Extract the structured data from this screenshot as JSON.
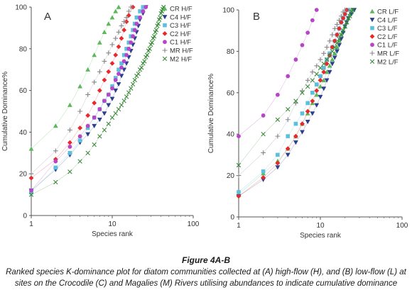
{
  "chart_data": [
    {
      "type": "scatter",
      "panel_label": "A",
      "xlabel": "Species rank",
      "ylabel": "Cumulative Dominance%",
      "xscale": "log",
      "xlim": [
        1,
        100
      ],
      "ylim": [
        0,
        100
      ],
      "xticks": [
        "1",
        "10",
        "100"
      ],
      "yticks": [
        "0",
        "20",
        "40",
        "60",
        "80",
        "100"
      ],
      "legend_position": "right",
      "series": [
        {
          "name": "CR H/F",
          "marker": "triangle",
          "color": "#5cb85c",
          "x": [
            1,
            2,
            3,
            4,
            5,
            6,
            7,
            8,
            9,
            10,
            11,
            12
          ],
          "y": [
            32,
            43,
            53,
            62,
            70,
            77,
            83,
            88,
            92,
            95,
            98,
            100
          ]
        },
        {
          "name": "C4 H/F",
          "marker": "triangle-down",
          "color": "#2a3f8f",
          "x": [
            1,
            2,
            3,
            4,
            5,
            6,
            7,
            8,
            9,
            10,
            11,
            12,
            13,
            14,
            15,
            16,
            17,
            18,
            19,
            20,
            21,
            22,
            24,
            26
          ],
          "y": [
            12,
            22,
            29,
            35,
            39,
            43,
            46,
            49,
            53,
            56,
            60,
            63,
            67,
            70,
            73,
            76,
            79,
            82,
            85,
            88,
            91,
            94,
            97,
            100
          ]
        },
        {
          "name": "C3 H/F",
          "marker": "square",
          "color": "#5bc0de",
          "x": [
            1,
            2,
            3,
            4,
            5,
            6,
            7,
            8,
            9,
            10,
            11,
            12,
            13,
            14,
            15,
            16,
            17,
            18,
            19,
            20,
            22,
            24
          ],
          "y": [
            11,
            23,
            30,
            36,
            42,
            47,
            51,
            55,
            58,
            62,
            66,
            70,
            73,
            77,
            80,
            83,
            86,
            89,
            92,
            95,
            98,
            100
          ]
        },
        {
          "name": "C2 H/F",
          "marker": "diamond",
          "color": "#e8282b",
          "x": [
            1,
            2,
            3,
            4,
            5,
            6,
            7,
            8,
            9,
            10,
            11,
            12,
            13,
            14,
            15,
            16,
            18
          ],
          "y": [
            18,
            27,
            35,
            42,
            48,
            54,
            60,
            65,
            69,
            73,
            77,
            81,
            85,
            89,
            93,
            96,
            100
          ]
        },
        {
          "name": "C1 H/F",
          "marker": "circle",
          "color": "#b845c8",
          "x": [
            1,
            2,
            3,
            4,
            5,
            6,
            7,
            8,
            9,
            10,
            11,
            12,
            13,
            14,
            15,
            16,
            17,
            18,
            19,
            20,
            22,
            24,
            26
          ],
          "y": [
            12,
            26,
            33,
            38,
            43,
            47,
            51,
            55,
            58,
            61,
            65,
            68,
            71,
            74,
            77,
            80,
            83,
            86,
            89,
            92,
            95,
            98,
            100
          ]
        },
        {
          "name": "MR H/F",
          "marker": "plus",
          "color": "#888888",
          "x": [
            1,
            2,
            3,
            4,
            5,
            6,
            7,
            8,
            9,
            10,
            11,
            12,
            13,
            14,
            15,
            16,
            17
          ],
          "y": [
            20,
            31,
            41,
            50,
            58,
            64,
            69,
            74,
            78,
            82,
            85,
            88,
            91,
            93,
            95,
            98,
            100
          ]
        },
        {
          "name": "M2 H/F",
          "marker": "cross",
          "color": "#3a8a3a",
          "x": [
            1,
            2,
            3,
            4,
            5,
            6,
            7,
            8,
            9,
            10,
            11,
            12,
            13,
            14,
            15,
            16,
            17,
            18,
            19,
            20,
            21,
            22,
            23,
            24,
            25,
            26,
            27,
            28,
            29,
            30,
            31,
            32,
            33,
            34,
            35,
            36,
            37,
            38,
            39,
            40,
            41,
            42,
            43
          ],
          "y": [
            10,
            16,
            21,
            26,
            30,
            34,
            38,
            41,
            44,
            47,
            49,
            51,
            53,
            55,
            57,
            59,
            61,
            63,
            65,
            67,
            68,
            70,
            71,
            73,
            74,
            76,
            77,
            79,
            80,
            82,
            83,
            85,
            86,
            88,
            89,
            91,
            92,
            94,
            95,
            97,
            98,
            99,
            100
          ]
        }
      ]
    },
    {
      "type": "scatter",
      "panel_label": "B",
      "xlabel": "Species rank",
      "ylabel": "Cumulative Dominance%",
      "xscale": "log",
      "xlim": [
        1,
        100
      ],
      "ylim": [
        0,
        100
      ],
      "xticks": [
        "1",
        "10",
        "100"
      ],
      "yticks": [
        "0",
        "20",
        "40",
        "60",
        "80",
        "100"
      ],
      "legend_position": "right",
      "series": [
        {
          "name": "CR L/F",
          "marker": "triangle",
          "color": "#5cb85c",
          "x": [
            1,
            2,
            3,
            4,
            5,
            6,
            7,
            8,
            9,
            10,
            11,
            12,
            13,
            14,
            15,
            16,
            17,
            18,
            19,
            20,
            21,
            22,
            23,
            24
          ],
          "y": [
            11,
            21,
            27,
            33,
            39,
            45,
            50,
            55,
            59,
            63,
            66,
            70,
            73,
            76,
            79,
            82,
            85,
            88,
            90,
            92,
            94,
            96,
            98,
            100
          ]
        },
        {
          "name": "C4 L/F",
          "marker": "triangle-down",
          "color": "#2a3f8f",
          "x": [
            1,
            2,
            3,
            4,
            5,
            6,
            7,
            8,
            9,
            10,
            11,
            12,
            13,
            14,
            15,
            16,
            17,
            18,
            19,
            20,
            21,
            22,
            24,
            26
          ],
          "y": [
            10,
            18,
            24,
            30,
            36,
            41,
            46,
            50,
            54,
            58,
            62,
            66,
            70,
            74,
            77,
            80,
            83,
            86,
            89,
            92,
            94,
            96,
            98,
            100
          ]
        },
        {
          "name": "C3 L/F",
          "marker": "square",
          "color": "#5bc0de",
          "x": [
            1,
            2,
            3,
            4,
            5,
            6,
            7,
            8,
            9,
            10,
            11,
            12,
            13,
            14,
            15,
            16,
            17,
            18,
            19,
            20,
            22
          ],
          "y": [
            12,
            22,
            30,
            39,
            45,
            50,
            55,
            60,
            64,
            68,
            72,
            76,
            79,
            82,
            85,
            88,
            91,
            94,
            96,
            98,
            100
          ]
        },
        {
          "name": "C2 L/F",
          "marker": "diamond",
          "color": "#e8282b",
          "x": [
            1,
            2,
            3,
            4,
            5,
            6,
            7,
            8,
            9,
            10,
            11,
            12,
            13,
            14,
            15,
            16,
            17,
            18,
            19,
            20,
            21
          ],
          "y": [
            10,
            19,
            26,
            33,
            39,
            45,
            51,
            56,
            61,
            66,
            70,
            74,
            78,
            82,
            85,
            88,
            91,
            94,
            96,
            98,
            100
          ]
        },
        {
          "name": "C1 L/F",
          "marker": "circle",
          "color": "#b845c8",
          "x": [
            1,
            2,
            3,
            4,
            5,
            6,
            7,
            8,
            9
          ],
          "y": [
            39,
            49,
            59,
            68,
            76,
            83,
            89,
            95,
            100
          ]
        },
        {
          "name": "MR L/F",
          "marker": "plus",
          "color": "#888888",
          "x": [
            1,
            2,
            3,
            4,
            5,
            6,
            7,
            8,
            9,
            10,
            11,
            12,
            13,
            14,
            15,
            16,
            17,
            18,
            19,
            20
          ],
          "y": [
            20,
            31,
            39,
            47,
            55,
            61,
            66,
            70,
            73,
            76,
            79,
            82,
            85,
            88,
            91,
            93,
            95,
            97,
            99,
            100
          ]
        },
        {
          "name": "M2 L/F",
          "marker": "cross",
          "color": "#3a8a3a",
          "x": [
            1,
            2,
            3,
            4,
            5,
            6,
            7,
            8,
            9,
            10,
            11,
            12,
            13,
            14,
            15,
            16,
            17,
            18,
            19,
            20,
            21,
            22,
            23,
            24,
            25
          ],
          "y": [
            25,
            40,
            47,
            52,
            56,
            60,
            63,
            66,
            69,
            72,
            74,
            76,
            78,
            80,
            82,
            84,
            86,
            88,
            90,
            92,
            94,
            96,
            97,
            99,
            100
          ]
        }
      ]
    }
  ],
  "caption": {
    "title": "Figure 4A-B",
    "text": "Ranked species K-dominance plot for diatom communities collected at (A) high-flow (H), and (B) low-flow (L) at sites on the Crocodile (C) and Magalies (M) Rivers utilising abundances to indicate cumulative dominance"
  }
}
